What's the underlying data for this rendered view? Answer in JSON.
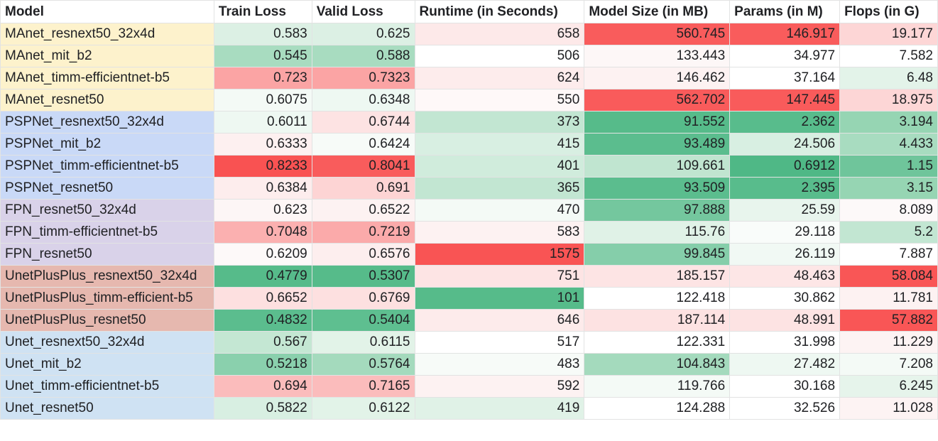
{
  "columns": [
    "Model",
    "Train Loss",
    "Valid Loss",
    "Runtime (in Seconds)",
    "Model Size (in MB)",
    "Params (in M)",
    "Flops (in G)"
  ],
  "rows": [
    {
      "model": "MAnet_resnext50_32x4d",
      "group_color": "#fdf2cc",
      "cells": [
        {
          "v": "0.583",
          "bg": "#dcf0e4"
        },
        {
          "v": "0.625",
          "bg": "#dcf0e4"
        },
        {
          "v": "658",
          "bg": "#fde9e9"
        },
        {
          "v": "560.745",
          "bg": "#f95c5c"
        },
        {
          "v": "146.917",
          "bg": "#f95c5c"
        },
        {
          "v": "19.177",
          "bg": "#fdd6d6"
        }
      ]
    },
    {
      "model": "MAnet_mit_b2",
      "group_color": "#fdf2cc",
      "cells": [
        {
          "v": "0.545",
          "bg": "#a8dcc0"
        },
        {
          "v": "0.588",
          "bg": "#a8dcc0"
        },
        {
          "v": "506",
          "bg": "#ffffff"
        },
        {
          "v": "133.443",
          "bg": "#fdf7f7"
        },
        {
          "v": "34.977",
          "bg": "#ffffff"
        },
        {
          "v": "7.582",
          "bg": "#ffffff"
        }
      ]
    },
    {
      "model": "MAnet_timm-efficientnet-b5",
      "group_color": "#fdf2cc",
      "cells": [
        {
          "v": "0.723",
          "bg": "#fba4a4"
        },
        {
          "v": "0.7323",
          "bg": "#fba4a4"
        },
        {
          "v": "624",
          "bg": "#fdecec"
        },
        {
          "v": "146.462",
          "bg": "#fdf2f2"
        },
        {
          "v": "37.164",
          "bg": "#ffffff"
        },
        {
          "v": "6.48",
          "bg": "#e3f3e9"
        }
      ]
    },
    {
      "model": "MAnet_resnet50",
      "group_color": "#fdf2cc",
      "cells": [
        {
          "v": "0.6075",
          "bg": "#f4faf6"
        },
        {
          "v": "0.6348",
          "bg": "#eef8f2"
        },
        {
          "v": "550",
          "bg": "#fef8f8"
        },
        {
          "v": "562.702",
          "bg": "#f95b5b"
        },
        {
          "v": "147.445",
          "bg": "#f95b5b"
        },
        {
          "v": "18.975",
          "bg": "#fdd6d6"
        }
      ]
    },
    {
      "model": "PSPNet_resnext50_32x4d",
      "group_color": "#c9d9f7",
      "cells": [
        {
          "v": "0.6011",
          "bg": "#eef8f2"
        },
        {
          "v": "0.6744",
          "bg": "#fde3e3"
        },
        {
          "v": "373",
          "bg": "#c2e6d2"
        },
        {
          "v": "91.552",
          "bg": "#56bb8a"
        },
        {
          "v": "2.362",
          "bg": "#58bc8c"
        },
        {
          "v": "3.194",
          "bg": "#96d5b3"
        }
      ]
    },
    {
      "model": "PSPNet_mit_b2",
      "group_color": "#c9d9f7",
      "cells": [
        {
          "v": "0.6333",
          "bg": "#fdf0f0"
        },
        {
          "v": "0.6424",
          "bg": "#f7fbf8"
        },
        {
          "v": "415",
          "bg": "#d8efe2"
        },
        {
          "v": "93.489",
          "bg": "#5bbd8e"
        },
        {
          "v": "24.506",
          "bg": "#d8efe2"
        },
        {
          "v": "4.433",
          "bg": "#a8dcc0"
        }
      ]
    },
    {
      "model": "PSPNet_timm-efficientnet-b5",
      "group_color": "#c9d9f7",
      "cells": [
        {
          "v": "0.8233",
          "bg": "#f95252"
        },
        {
          "v": "0.8041",
          "bg": "#f95c5c"
        },
        {
          "v": "401",
          "bg": "#d0ecdc"
        },
        {
          "v": "109.661",
          "bg": "#c0e5d0"
        },
        {
          "v": "0.6912",
          "bg": "#4fb886"
        },
        {
          "v": "1.15",
          "bg": "#6fc59b"
        }
      ]
    },
    {
      "model": "PSPNet_resnet50",
      "group_color": "#c9d9f7",
      "cells": [
        {
          "v": "0.6384",
          "bg": "#fdeded"
        },
        {
          "v": "0.691",
          "bg": "#fdd4d4"
        },
        {
          "v": "365",
          "bg": "#c2e6d2"
        },
        {
          "v": "93.509",
          "bg": "#5bbd8e"
        },
        {
          "v": "2.395",
          "bg": "#58bc8c"
        },
        {
          "v": "3.15",
          "bg": "#96d5b3"
        }
      ]
    },
    {
      "model": "FPN_resnet50_32x4d",
      "group_color": "#d9d2e9",
      "cells": [
        {
          "v": "0.623",
          "bg": "#fdf6f6"
        },
        {
          "v": "0.6522",
          "bg": "#fdf2f2"
        },
        {
          "v": "470",
          "bg": "#f4faf6"
        },
        {
          "v": "97.888",
          "bg": "#74c79e"
        },
        {
          "v": "25.59",
          "bg": "#e8f5ed"
        },
        {
          "v": "8.089",
          "bg": "#fdf9f9"
        }
      ]
    },
    {
      "model": "FPN_timm-efficientnet-b5",
      "group_color": "#d9d2e9",
      "cells": [
        {
          "v": "0.7048",
          "bg": "#fbb0b0"
        },
        {
          "v": "0.7219",
          "bg": "#fbaaaa"
        },
        {
          "v": "583",
          "bg": "#fdf2f2"
        },
        {
          "v": "115.76",
          "bg": "#e0f2e7"
        },
        {
          "v": "29.118",
          "bg": "#f9fcfa"
        },
        {
          "v": "5.2",
          "bg": "#c2e6d2"
        }
      ]
    },
    {
      "model": "FPN_resnet50",
      "group_color": "#d9d2e9",
      "cells": [
        {
          "v": "0.6209",
          "bg": "#fdf9f9"
        },
        {
          "v": "0.6576",
          "bg": "#fdeeee"
        },
        {
          "v": "1575",
          "bg": "#f95454"
        },
        {
          "v": "99.845",
          "bg": "#85ceaa"
        },
        {
          "v": "26.119",
          "bg": "#f1f9f4"
        },
        {
          "v": "7.887",
          "bg": "#ffffff"
        }
      ]
    },
    {
      "model": "UnetPlusPlus_resnext50_32x4d",
      "group_color": "#e6b8af",
      "cells": [
        {
          "v": "0.4779",
          "bg": "#56bb8a"
        },
        {
          "v": "0.5307",
          "bg": "#56bb8a"
        },
        {
          "v": "751",
          "bg": "#fde4e4"
        },
        {
          "v": "185.157",
          "bg": "#fde4e4"
        },
        {
          "v": "48.463",
          "bg": "#fde6e6"
        },
        {
          "v": "58.084",
          "bg": "#f95656"
        }
      ]
    },
    {
      "model": "UnetPlusPlus_timm-efficient-b5",
      "group_color": "#e6b8af",
      "cells": [
        {
          "v": "0.6652",
          "bg": "#fde0e0"
        },
        {
          "v": "0.6769",
          "bg": "#fde0e0"
        },
        {
          "v": "101",
          "bg": "#56bb8a"
        },
        {
          "v": "122.418",
          "bg": "#ffffff"
        },
        {
          "v": "30.862",
          "bg": "#ffffff"
        },
        {
          "v": "11.781",
          "bg": "#fdf2f2"
        }
      ]
    },
    {
      "model": "UnetPlusPlus_resnet50",
      "group_color": "#e6b8af",
      "cells": [
        {
          "v": "0.4832",
          "bg": "#5bbd8e"
        },
        {
          "v": "0.5404",
          "bg": "#5ebf90"
        },
        {
          "v": "646",
          "bg": "#fdebeb"
        },
        {
          "v": "187.114",
          "bg": "#fde2e2"
        },
        {
          "v": "48.991",
          "bg": "#fde3e3"
        },
        {
          "v": "57.882",
          "bg": "#f95656"
        }
      ]
    },
    {
      "model": "Unet_resnext50_32x4d",
      "group_color": "#cfe2f3",
      "cells": [
        {
          "v": "0.567",
          "bg": "#c4e7d3"
        },
        {
          "v": "0.6115",
          "bg": "#e2f3e8"
        },
        {
          "v": "517",
          "bg": "#ffffff"
        },
        {
          "v": "122.331",
          "bg": "#ffffff"
        },
        {
          "v": "31.998",
          "bg": "#ffffff"
        },
        {
          "v": "11.229",
          "bg": "#fdf3f3"
        }
      ]
    },
    {
      "model": "Unet_mit_b2",
      "group_color": "#cfe2f3",
      "cells": [
        {
          "v": "0.5218",
          "bg": "#8ad0ad"
        },
        {
          "v": "0.5764",
          "bg": "#a4dabd"
        },
        {
          "v": "483",
          "bg": "#f7fbf8"
        },
        {
          "v": "104.843",
          "bg": "#a4dabd"
        },
        {
          "v": "27.482",
          "bg": "#eef8f2"
        },
        {
          "v": "7.208",
          "bg": "#f4faf6"
        }
      ]
    },
    {
      "model": "Unet_timm-efficientnet-b5",
      "group_color": "#cfe2f3",
      "cells": [
        {
          "v": "0.694",
          "bg": "#fbbcbc"
        },
        {
          "v": "0.7165",
          "bg": "#fbbcbc"
        },
        {
          "v": "592",
          "bg": "#fdf2f2"
        },
        {
          "v": "119.766",
          "bg": "#f4faf6"
        },
        {
          "v": "30.168",
          "bg": "#ffffff"
        },
        {
          "v": "6.245",
          "bg": "#e6f4eb"
        }
      ]
    },
    {
      "model": "Unet_resnet50",
      "group_color": "#cfe2f3",
      "cells": [
        {
          "v": "0.5822",
          "bg": "#d8efe2"
        },
        {
          "v": "0.6122",
          "bg": "#e2f3e8"
        },
        {
          "v": "419",
          "bg": "#e0f2e7"
        },
        {
          "v": "124.288",
          "bg": "#ffffff"
        },
        {
          "v": "32.526",
          "bg": "#ffffff"
        },
        {
          "v": "11.028",
          "bg": "#fdf3f3"
        }
      ]
    }
  ]
}
